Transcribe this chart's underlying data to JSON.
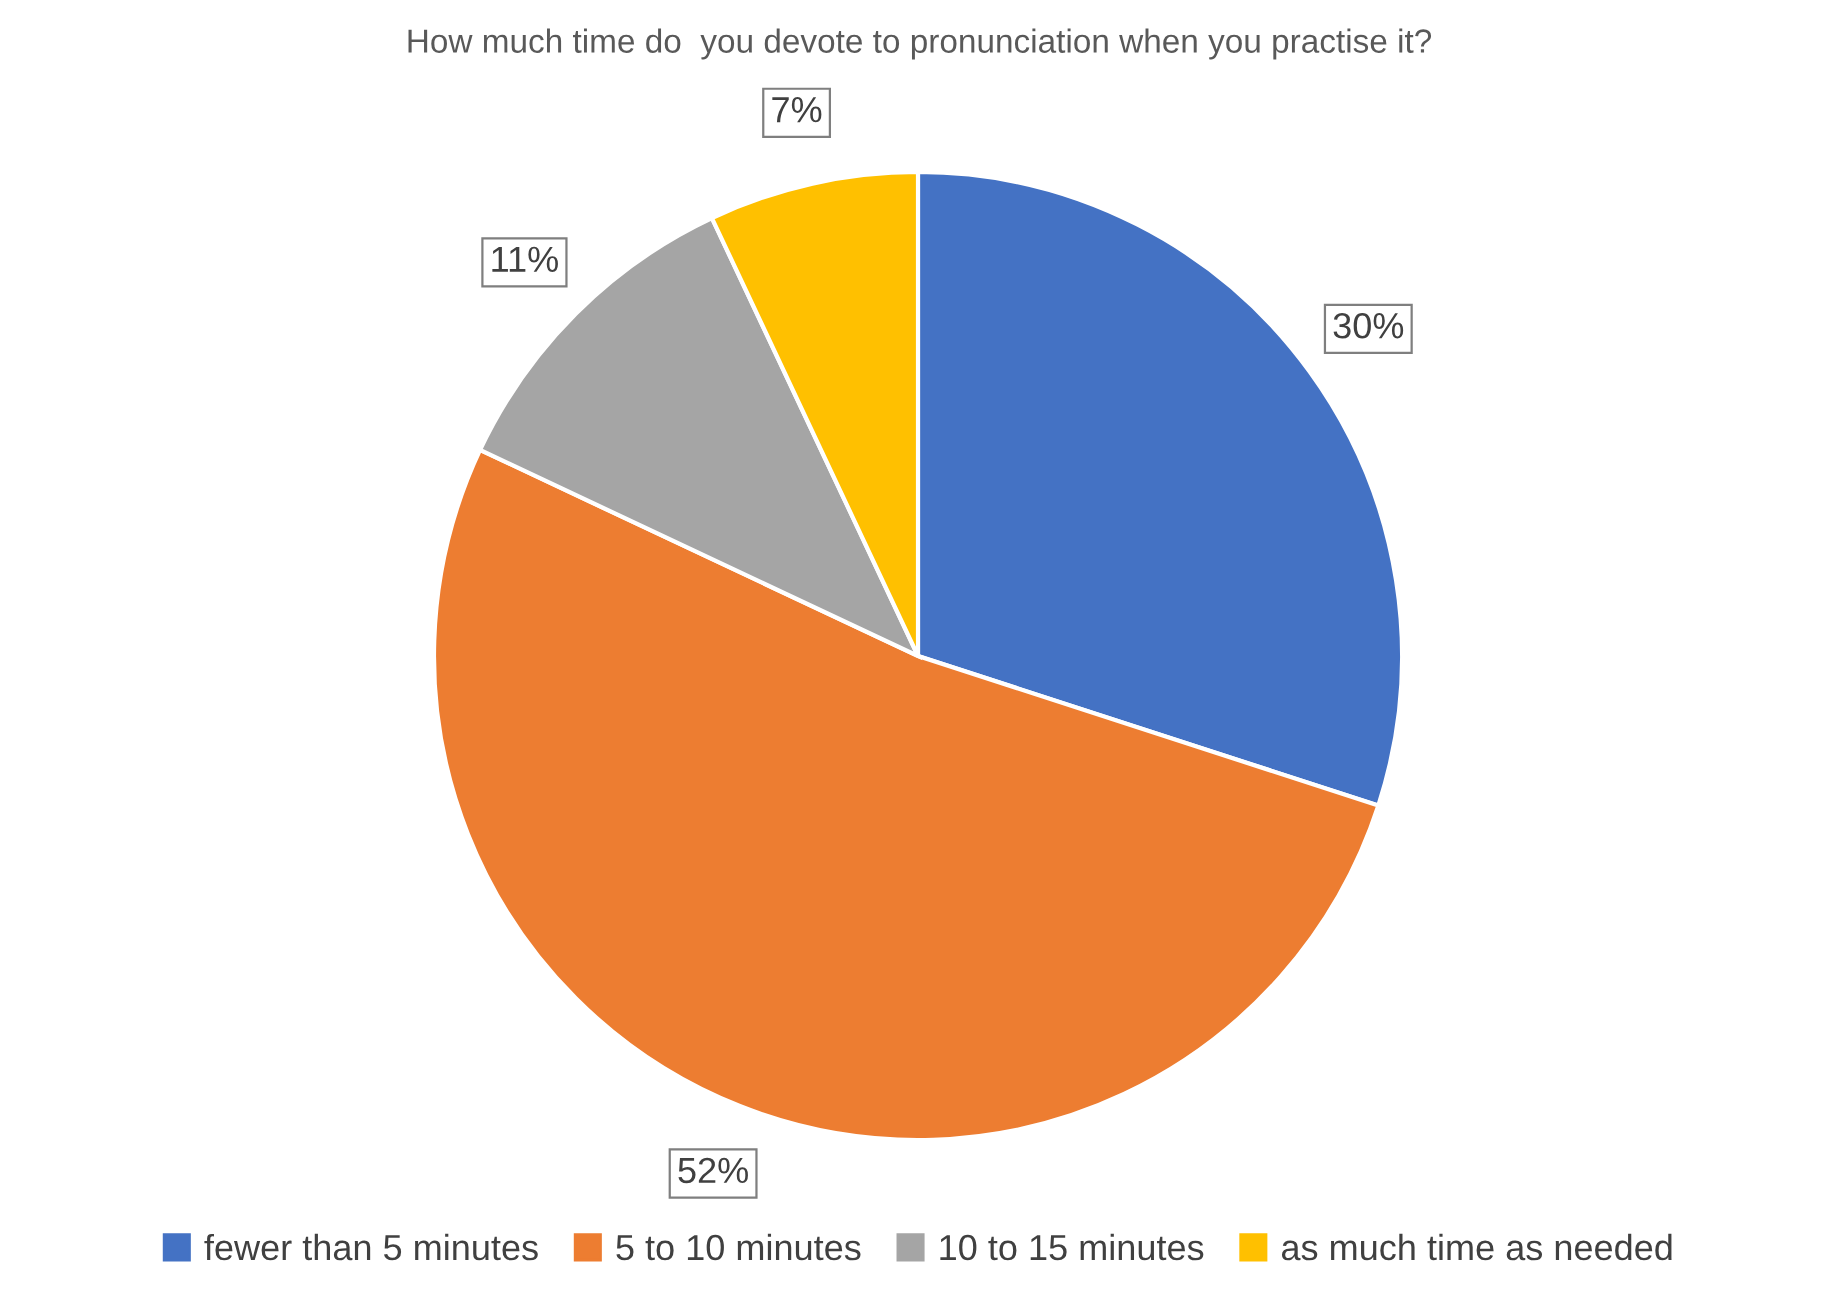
{
  "chart_data": {
    "type": "pie",
    "title": "How much time do  you devote to pronunciation when you practise it?",
    "categories": [
      "fewer than 5 minutes",
      "5 to 10 minutes",
      "10 to 15 minutes",
      "as much time as needed"
    ],
    "values": [
      30,
      52,
      11,
      7
    ],
    "colors": [
      "#4472c4",
      "#ed7d31",
      "#a5a5a5",
      "#ffc000"
    ],
    "value_labels": [
      "30%",
      "52%",
      "11%",
      "7%"
    ],
    "legend": "bottom"
  }
}
